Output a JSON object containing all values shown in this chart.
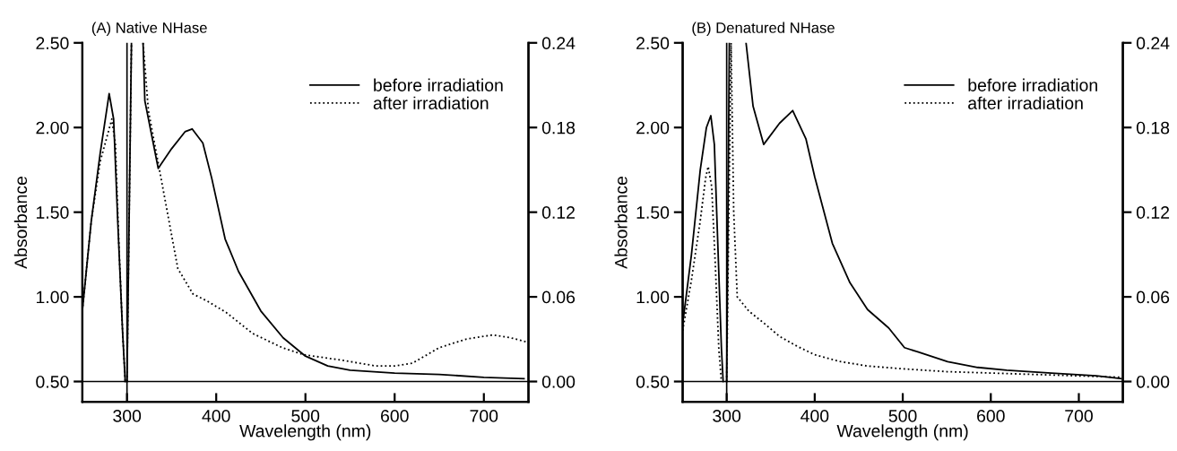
{
  "chart_data": [
    {
      "type": "line",
      "title": "(A) Native NHase",
      "xlabel": "Wavelength (nm)",
      "ylabel": "Absorbance",
      "xlim": [
        250,
        750
      ],
      "xticks": [
        300,
        400,
        500,
        600,
        700
      ],
      "ylim": [
        0.38,
        2.5
      ],
      "yticks": [
        {
          "value": 0.5,
          "label": "0.50"
        },
        {
          "value": 1.0,
          "label": "1.00"
        },
        {
          "value": 1.5,
          "label": "1.50"
        },
        {
          "value": 2.0,
          "label": "2.00"
        },
        {
          "value": 2.5,
          "label": "2.50"
        }
      ],
      "y2lim": [
        -0.0144,
        0.24
      ],
      "y2ticks": [
        {
          "value": 0,
          "label": "0.00"
        },
        0.06,
        0.12,
        0.18,
        0.24
      ],
      "legend": "top right",
      "grid": false,
      "ref_lines": [
        {
          "axis": "y",
          "value": 0.5,
          "color": "#000000"
        },
        {
          "axis": "x",
          "value": 300,
          "color": "#000000"
        }
      ],
      "series": [
        {
          "color": "#000000",
          "line_style": "solid",
          "x": [
            250,
            260,
            270,
            280,
            285,
            290,
            295,
            298
          ],
          "values": [
            0.92,
            1.45,
            1.85,
            2.2,
            2.05,
            1.4,
            0.8,
            0.5
          ]
        },
        {
          "color": "#000000",
          "line_style": "dotted",
          "x": [
            250,
            260,
            270,
            283,
            287,
            291,
            295,
            298
          ],
          "values": [
            0.92,
            1.45,
            1.8,
            2.05,
            1.9,
            1.3,
            0.8,
            0.5
          ]
        },
        {
          "name": "before irradiation",
          "color": "#000000",
          "line_style": "solid",
          "axis": "y2",
          "x": [
            300,
            305,
            310,
            318,
            320,
            335,
            350,
            365,
            373,
            385,
            395,
            410,
            425,
            450,
            475,
            500,
            525,
            550,
            600,
            650,
            700,
            745
          ],
          "values": [
            0.0,
            0.24,
            null,
            0.24,
            0.199,
            0.151,
            0.165,
            0.177,
            0.179,
            0.169,
            0.144,
            0.101,
            0.078,
            0.05,
            0.031,
            0.018,
            0.011,
            0.008,
            0.006,
            0.005,
            0.003,
            0.002
          ]
        },
        {
          "name": "after irradiation",
          "color": "#000000",
          "line_style": "dotted",
          "axis": "y2",
          "x": [
            300,
            305,
            310,
            318,
            324,
            337,
            357,
            374,
            390,
            411,
            441,
            474,
            498,
            542,
            579,
            600,
            620,
            650,
            680,
            710,
            730,
            748
          ],
          "values": [
            0.0,
            0.24,
            null,
            0.24,
            0.192,
            0.148,
            0.08,
            0.062,
            0.057,
            0.049,
            0.034,
            0.024,
            0.019,
            0.015,
            0.011,
            0.011,
            0.013,
            0.024,
            0.03,
            0.033,
            0.031,
            0.028
          ]
        }
      ]
    },
    {
      "type": "line",
      "title": "(B) Denatured NHase",
      "xlabel": "Wavelength (nm)",
      "ylabel": "Absorbance",
      "xlim": [
        250,
        750
      ],
      "xticks": [
        300,
        400,
        500,
        600,
        700
      ],
      "ylim": [
        0.38,
        2.5
      ],
      "yticks": [
        {
          "value": 0.5,
          "label": "0.50"
        },
        {
          "value": 1.0,
          "label": "1.00"
        },
        {
          "value": 1.5,
          "label": "1.50"
        },
        {
          "value": 2.0,
          "label": "2.00"
        },
        {
          "value": 2.5,
          "label": "2.50"
        }
      ],
      "y2lim": [
        -0.0144,
        0.24
      ],
      "y2ticks": [
        {
          "value": 0,
          "label": "0.00"
        },
        0.06,
        0.12,
        0.18,
        0.24
      ],
      "legend": "top right",
      "grid": false,
      "ref_lines": [
        {
          "axis": "y",
          "value": 0.5,
          "color": "#000000"
        },
        {
          "axis": "x",
          "value": 300,
          "color": "#000000"
        }
      ],
      "series": [
        {
          "color": "#000000",
          "line_style": "solid",
          "x": [
            250,
            260,
            270,
            277,
            282,
            286,
            290,
            294,
            296
          ],
          "values": [
            0.84,
            1.25,
            1.75,
            2.0,
            2.07,
            1.9,
            1.3,
            0.7,
            0.5
          ]
        },
        {
          "color": "#000000",
          "line_style": "dotted",
          "x": [
            250,
            260,
            270,
            276,
            279,
            283,
            287,
            291,
            294
          ],
          "values": [
            0.8,
            1.1,
            1.45,
            1.7,
            1.77,
            1.65,
            1.2,
            0.7,
            0.5
          ]
        },
        {
          "name": "before irradiation",
          "color": "#000000",
          "line_style": "solid",
          "axis": "y2",
          "x": [
            300,
            303,
            310,
            322,
            330,
            342,
            360,
            375,
            390,
            400,
            420,
            440,
            460,
            484,
            502,
            517,
            551,
            585,
            618,
            669,
            720,
            748
          ],
          "values": [
            0.0,
            0.24,
            null,
            0.24,
            0.195,
            0.168,
            0.183,
            0.192,
            0.172,
            0.145,
            0.098,
            0.07,
            0.051,
            0.038,
            0.024,
            0.021,
            0.014,
            0.01,
            0.008,
            0.006,
            0.004,
            0.002
          ]
        },
        {
          "name": "after irradiation",
          "color": "#000000",
          "line_style": "dotted",
          "axis": "y2",
          "x": [
            300,
            305,
            308,
            312,
            325,
            345,
            360,
            380,
            400,
            430,
            460,
            500,
            550,
            600,
            650,
            700,
            748
          ],
          "values": [
            0.0,
            0.24,
            0.12,
            0.06,
            0.05,
            0.04,
            0.032,
            0.025,
            0.019,
            0.014,
            0.011,
            0.009,
            0.007,
            0.006,
            0.005,
            0.004,
            0.003
          ]
        }
      ]
    }
  ]
}
